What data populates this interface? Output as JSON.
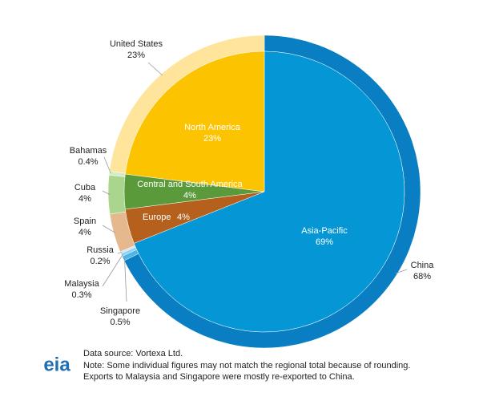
{
  "chart_data": {
    "type": "pie",
    "inner": {
      "categories": [
        "Asia-Pacific",
        "Europe",
        "Central and South America",
        "North America"
      ],
      "values": [
        69,
        4,
        4,
        23
      ],
      "value_labels": [
        "69%",
        "4%",
        "4%",
        "23%"
      ],
      "colors": [
        "#0596d6",
        "#b5601c",
        "#5b9a3b",
        "#fcc400"
      ]
    },
    "outer": {
      "categories": [
        "China",
        "Singapore",
        "Malaysia",
        "Russia",
        "Spain",
        "Cuba",
        "Bahamas",
        "United States"
      ],
      "values": [
        68,
        0.5,
        0.3,
        0.2,
        4,
        4,
        0.4,
        23
      ],
      "value_labels": [
        "68%",
        "0.5%",
        "0.3%",
        "0.2%",
        "4%",
        "4%",
        "0.4%",
        "23%"
      ],
      "colors": [
        "#0a7ec2",
        "#4fb4e6",
        "#8fd0f0",
        "#c9e7f7",
        "#e6b88d",
        "#a9d58d",
        "#d5ecc6",
        "#fee59b"
      ]
    },
    "logo_text": "eia",
    "notes": [
      "Data source: Vortexa Ltd.",
      "Note: Some individual figures may not match the regional total because of rounding.",
      "Exports to Malaysia and Singapore were mostly re-exported to China."
    ]
  }
}
